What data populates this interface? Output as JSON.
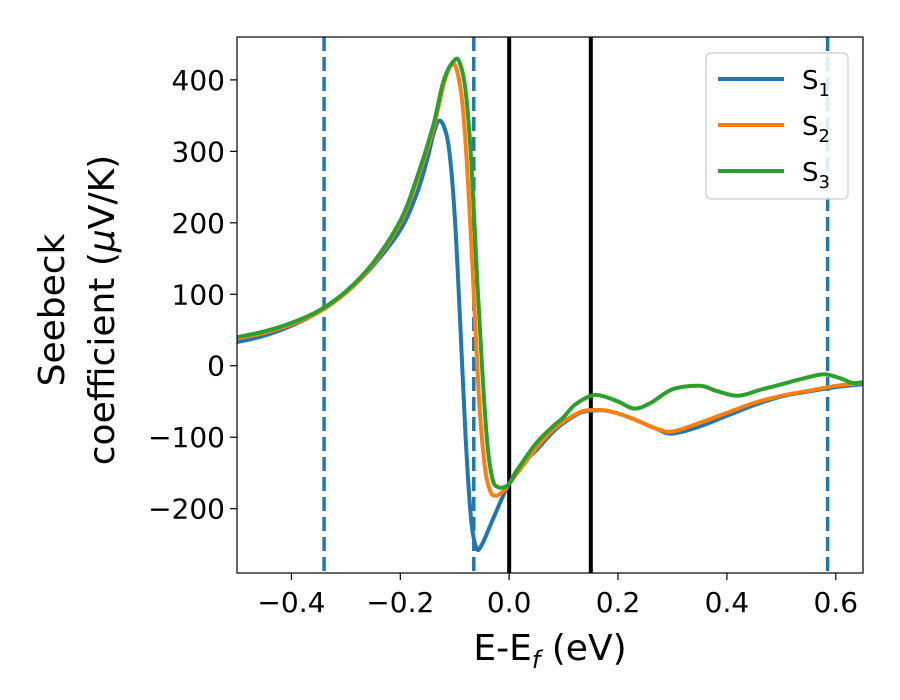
{
  "chart_data": {
    "type": "line",
    "xlabel": "E-E",
    "xlabel_sub": "f",
    "xlabel_unit": "(eV)",
    "ylabel_line1": "Seebeck",
    "ylabel_line2": "coefficient  (",
    "ylabel_mu": "μ",
    "ylabel_unit": "V/K)",
    "xlim": [
      -0.5,
      0.65
    ],
    "ylim": [
      -290,
      460
    ],
    "x_ticks": [
      -0.4,
      -0.2,
      0.0,
      0.2,
      0.4,
      0.6
    ],
    "x_tick_labels": [
      "−0.4",
      "−0.2",
      "0.0",
      "0.2",
      "0.4",
      "0.6"
    ],
    "y_ticks": [
      -200,
      -100,
      0,
      100,
      200,
      300,
      400
    ],
    "y_tick_labels": [
      "−200",
      "−100",
      "0",
      "100",
      "200",
      "300",
      "400"
    ],
    "grid": false,
    "legend_position": "top-right",
    "vertical_lines": [
      {
        "x": -0.34,
        "style": "dashed",
        "color": "#1f77b4"
      },
      {
        "x": -0.065,
        "style": "dashed",
        "color": "#1f77b4"
      },
      {
        "x": 0.0,
        "style": "solid",
        "color": "#000000"
      },
      {
        "x": 0.15,
        "style": "solid",
        "color": "#000000"
      },
      {
        "x": 0.585,
        "style": "dashed",
        "color": "#1f77b4"
      }
    ],
    "series": [
      {
        "name": "S",
        "sub": "1",
        "color": "#1f77b4",
        "points": [
          [
            -0.5,
            33
          ],
          [
            -0.45,
            42
          ],
          [
            -0.4,
            56
          ],
          [
            -0.35,
            75
          ],
          [
            -0.3,
            102
          ],
          [
            -0.25,
            140
          ],
          [
            -0.2,
            190
          ],
          [
            -0.17,
            240
          ],
          [
            -0.15,
            290
          ],
          [
            -0.14,
            322
          ],
          [
            -0.13,
            342
          ],
          [
            -0.12,
            335
          ],
          [
            -0.11,
            300
          ],
          [
            -0.1,
            210
          ],
          [
            -0.09,
            60
          ],
          [
            -0.08,
            -100
          ],
          [
            -0.07,
            -215
          ],
          [
            -0.06,
            -255
          ],
          [
            -0.05,
            -250
          ],
          [
            -0.03,
            -215
          ],
          [
            -0.01,
            -180
          ],
          [
            0.0,
            -165
          ],
          [
            0.02,
            -140
          ],
          [
            0.05,
            -118
          ],
          [
            0.08,
            -93
          ],
          [
            0.1,
            -80
          ],
          [
            0.13,
            -66
          ],
          [
            0.15,
            -63
          ],
          [
            0.18,
            -63
          ],
          [
            0.22,
            -72
          ],
          [
            0.27,
            -88
          ],
          [
            0.3,
            -95
          ],
          [
            0.35,
            -85
          ],
          [
            0.4,
            -70
          ],
          [
            0.45,
            -55
          ],
          [
            0.5,
            -43
          ],
          [
            0.55,
            -36
          ],
          [
            0.6,
            -30
          ],
          [
            0.65,
            -26
          ]
        ]
      },
      {
        "name": "S",
        "sub": "2",
        "color": "#ff7f0e",
        "points": [
          [
            -0.5,
            38
          ],
          [
            -0.45,
            46
          ],
          [
            -0.4,
            58
          ],
          [
            -0.35,
            75
          ],
          [
            -0.3,
            102
          ],
          [
            -0.25,
            142
          ],
          [
            -0.2,
            200
          ],
          [
            -0.17,
            258
          ],
          [
            -0.14,
            330
          ],
          [
            -0.12,
            395
          ],
          [
            -0.105,
            422
          ],
          [
            -0.095,
            410
          ],
          [
            -0.085,
            360
          ],
          [
            -0.075,
            250
          ],
          [
            -0.065,
            100
          ],
          [
            -0.055,
            -50
          ],
          [
            -0.045,
            -140
          ],
          [
            -0.035,
            -175
          ],
          [
            -0.025,
            -182
          ],
          [
            -0.01,
            -175
          ],
          [
            0.0,
            -165
          ],
          [
            0.02,
            -145
          ],
          [
            0.05,
            -115
          ],
          [
            0.08,
            -90
          ],
          [
            0.1,
            -78
          ],
          [
            0.13,
            -65
          ],
          [
            0.15,
            -62
          ],
          [
            0.18,
            -63
          ],
          [
            0.22,
            -72
          ],
          [
            0.27,
            -88
          ],
          [
            0.3,
            -92
          ],
          [
            0.35,
            -80
          ],
          [
            0.4,
            -66
          ],
          [
            0.45,
            -52
          ],
          [
            0.5,
            -42
          ],
          [
            0.55,
            -35
          ],
          [
            0.6,
            -28
          ],
          [
            0.65,
            -24
          ]
        ]
      },
      {
        "name": "S",
        "sub": "3",
        "color": "#2ca02c",
        "points": [
          [
            -0.5,
            40
          ],
          [
            -0.45,
            48
          ],
          [
            -0.4,
            60
          ],
          [
            -0.35,
            77
          ],
          [
            -0.3,
            104
          ],
          [
            -0.25,
            144
          ],
          [
            -0.2,
            203
          ],
          [
            -0.17,
            262
          ],
          [
            -0.14,
            335
          ],
          [
            -0.12,
            400
          ],
          [
            -0.1,
            428
          ],
          [
            -0.09,
            422
          ],
          [
            -0.08,
            385
          ],
          [
            -0.07,
            290
          ],
          [
            -0.06,
            140
          ],
          [
            -0.05,
            0
          ],
          [
            -0.04,
            -110
          ],
          [
            -0.03,
            -160
          ],
          [
            -0.02,
            -170
          ],
          [
            -0.01,
            -170
          ],
          [
            0.0,
            -165
          ],
          [
            0.02,
            -140
          ],
          [
            0.05,
            -108
          ],
          [
            0.08,
            -85
          ],
          [
            0.1,
            -72
          ],
          [
            0.12,
            -55
          ],
          [
            0.15,
            -42
          ],
          [
            0.17,
            -42
          ],
          [
            0.2,
            -50
          ],
          [
            0.23,
            -60
          ],
          [
            0.26,
            -52
          ],
          [
            0.3,
            -33
          ],
          [
            0.35,
            -28
          ],
          [
            0.38,
            -35
          ],
          [
            0.42,
            -42
          ],
          [
            0.46,
            -34
          ],
          [
            0.5,
            -26
          ],
          [
            0.55,
            -16
          ],
          [
            0.58,
            -12
          ],
          [
            0.61,
            -18
          ],
          [
            0.63,
            -24
          ],
          [
            0.65,
            -23
          ]
        ]
      }
    ]
  }
}
